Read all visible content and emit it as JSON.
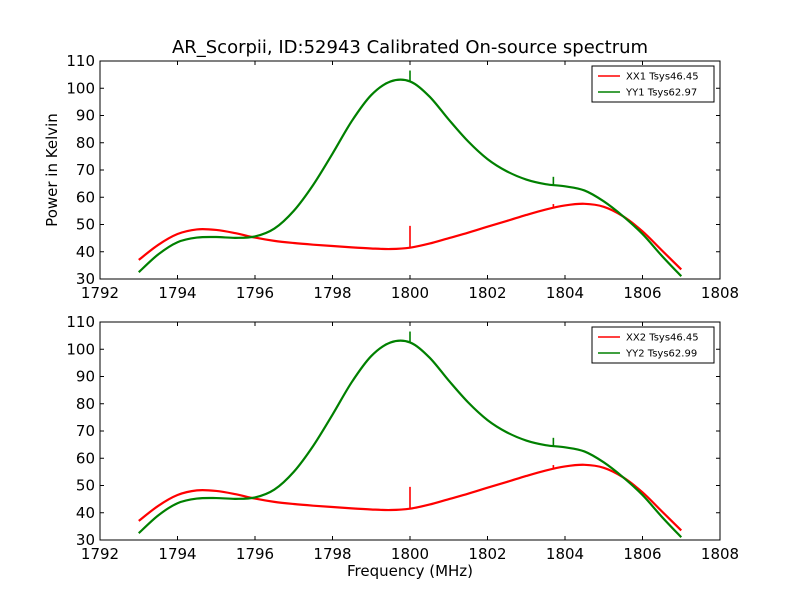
{
  "figure": {
    "title": "AR_Scorpii, ID:52943 Calibrated On-source spectrum"
  },
  "chart_data": [
    {
      "type": "line",
      "title": "AR_Scorpii, ID:52943 Calibrated On-source spectrum",
      "xlabel": "",
      "ylabel": "Power in Kelvin",
      "xlim": [
        1792,
        1808
      ],
      "ylim": [
        30,
        110
      ],
      "xticks": [
        "1792",
        "1794",
        "1796",
        "1798",
        "1800",
        "1802",
        "1804",
        "1806",
        "1808"
      ],
      "yticks": [
        "30",
        "40",
        "50",
        "60",
        "70",
        "80",
        "90",
        "100",
        "110"
      ],
      "grid": false,
      "legend_position": "top-right",
      "series": [
        {
          "name": "XX1 Tsys46.45",
          "color": "#ff0000",
          "x": [
            1793.0,
            1793.5,
            1794.0,
            1794.5,
            1795.0,
            1795.5,
            1796.0,
            1796.5,
            1797.0,
            1797.5,
            1798.0,
            1798.5,
            1799.0,
            1799.5,
            1800.0,
            1800.5,
            1801.0,
            1801.5,
            1802.0,
            1802.5,
            1803.0,
            1803.5,
            1804.0,
            1804.5,
            1805.0,
            1805.5,
            1806.0,
            1806.5,
            1807.0
          ],
          "y": [
            37.0,
            42.5,
            46.5,
            48.2,
            48.0,
            46.8,
            45.2,
            44.0,
            43.2,
            42.6,
            42.1,
            41.6,
            41.2,
            41.0,
            41.5,
            43.0,
            45.0,
            47.0,
            49.2,
            51.3,
            53.5,
            55.5,
            57.0,
            57.6,
            56.5,
            53.0,
            47.5,
            40.5,
            33.5
          ],
          "spikes": [
            {
              "x": 1800.0,
              "y": 49.5
            },
            {
              "x": 1803.7,
              "y": 57.5
            }
          ]
        },
        {
          "name": "YY1 Tsys62.97",
          "color": "#008000",
          "x": [
            1793.0,
            1793.5,
            1794.0,
            1794.5,
            1795.0,
            1795.5,
            1796.0,
            1796.5,
            1797.0,
            1797.5,
            1798.0,
            1798.5,
            1799.0,
            1799.5,
            1800.0,
            1800.5,
            1801.0,
            1801.5,
            1802.0,
            1802.5,
            1803.0,
            1803.5,
            1804.0,
            1804.5,
            1805.0,
            1805.5,
            1806.0,
            1806.5,
            1807.0
          ],
          "y": [
            32.5,
            39.0,
            43.5,
            45.2,
            45.4,
            45.1,
            45.6,
            48.5,
            55.0,
            64.5,
            76.0,
            88.0,
            97.5,
            102.5,
            102.5,
            97.0,
            88.5,
            80.5,
            74.0,
            69.5,
            66.5,
            64.8,
            64.0,
            62.5,
            58.5,
            53.0,
            46.5,
            38.5,
            31.0
          ],
          "spikes": [
            {
              "x": 1800.0,
              "y": 106.5
            },
            {
              "x": 1803.7,
              "y": 67.5
            }
          ]
        }
      ]
    },
    {
      "type": "line",
      "title": "",
      "xlabel": "Frequency (MHz)",
      "ylabel": "",
      "xlim": [
        1792,
        1808
      ],
      "ylim": [
        30,
        110
      ],
      "xticks": [
        "1792",
        "1794",
        "1796",
        "1798",
        "1800",
        "1802",
        "1804",
        "1806",
        "1808"
      ],
      "yticks": [
        "30",
        "40",
        "50",
        "60",
        "70",
        "80",
        "90",
        "100",
        "110"
      ],
      "grid": false,
      "legend_position": "top-right",
      "series": [
        {
          "name": "XX2 Tsys46.45",
          "color": "#ff0000",
          "x": [
            1793.0,
            1793.5,
            1794.0,
            1794.5,
            1795.0,
            1795.5,
            1796.0,
            1796.5,
            1797.0,
            1797.5,
            1798.0,
            1798.5,
            1799.0,
            1799.5,
            1800.0,
            1800.5,
            1801.0,
            1801.5,
            1802.0,
            1802.5,
            1803.0,
            1803.5,
            1804.0,
            1804.5,
            1805.0,
            1805.5,
            1806.0,
            1806.5,
            1807.0
          ],
          "y": [
            37.0,
            42.5,
            46.5,
            48.2,
            48.0,
            46.8,
            45.2,
            44.0,
            43.2,
            42.6,
            42.1,
            41.6,
            41.2,
            41.0,
            41.5,
            43.0,
            45.0,
            47.0,
            49.2,
            51.3,
            53.5,
            55.5,
            57.0,
            57.6,
            56.5,
            53.0,
            47.5,
            40.5,
            33.5
          ],
          "spikes": [
            {
              "x": 1800.0,
              "y": 49.5
            },
            {
              "x": 1803.7,
              "y": 57.5
            }
          ]
        },
        {
          "name": "YY2 Tsys62.99",
          "color": "#008000",
          "x": [
            1793.0,
            1793.5,
            1794.0,
            1794.5,
            1795.0,
            1795.5,
            1796.0,
            1796.5,
            1797.0,
            1797.5,
            1798.0,
            1798.5,
            1799.0,
            1799.5,
            1800.0,
            1800.5,
            1801.0,
            1801.5,
            1802.0,
            1802.5,
            1803.0,
            1803.5,
            1804.0,
            1804.5,
            1805.0,
            1805.5,
            1806.0,
            1806.5,
            1807.0
          ],
          "y": [
            32.5,
            39.0,
            43.5,
            45.2,
            45.4,
            45.1,
            45.6,
            48.5,
            55.0,
            64.5,
            76.0,
            88.0,
            97.5,
            102.5,
            102.5,
            97.0,
            88.5,
            80.5,
            74.0,
            69.5,
            66.5,
            64.8,
            64.0,
            62.5,
            58.5,
            53.0,
            46.5,
            38.5,
            31.0
          ],
          "spikes": [
            {
              "x": 1800.0,
              "y": 106.5
            },
            {
              "x": 1803.7,
              "y": 67.5
            }
          ]
        }
      ]
    }
  ]
}
